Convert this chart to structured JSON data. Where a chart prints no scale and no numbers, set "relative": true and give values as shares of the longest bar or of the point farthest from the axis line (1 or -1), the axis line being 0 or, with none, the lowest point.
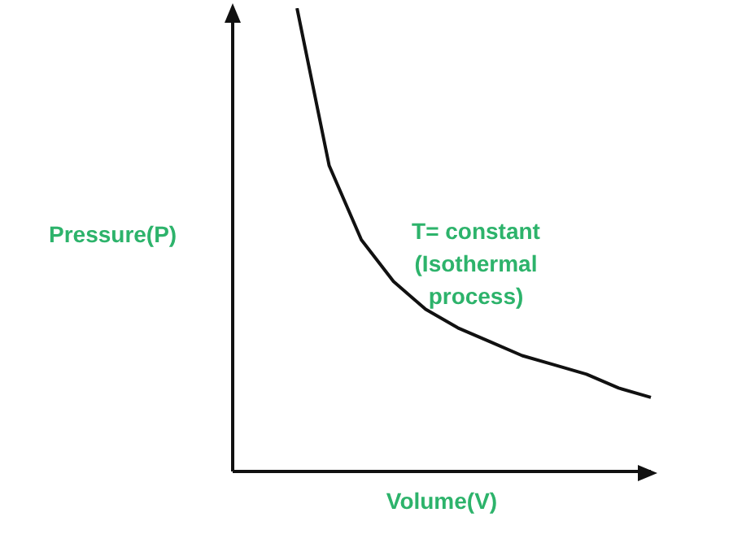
{
  "chart_data": {
    "type": "line",
    "relative": true,
    "xlabel": "Volume(V)",
    "ylabel": "Pressure(P)",
    "annotations": [
      "T= constant (Isothermal process)"
    ],
    "categories": [
      null,
      null,
      null,
      null,
      null,
      null,
      null,
      null,
      null,
      null,
      null,
      null,
      null,
      null
    ],
    "series": [
      {
        "color": "#111111",
        "values": [
          null,
          null,
          1.0,
          0.66,
          0.5,
          0.41,
          0.35,
          0.31,
          0.28,
          0.25,
          0.23,
          0.21,
          0.18,
          0.16
        ]
      }
    ]
  }
}
